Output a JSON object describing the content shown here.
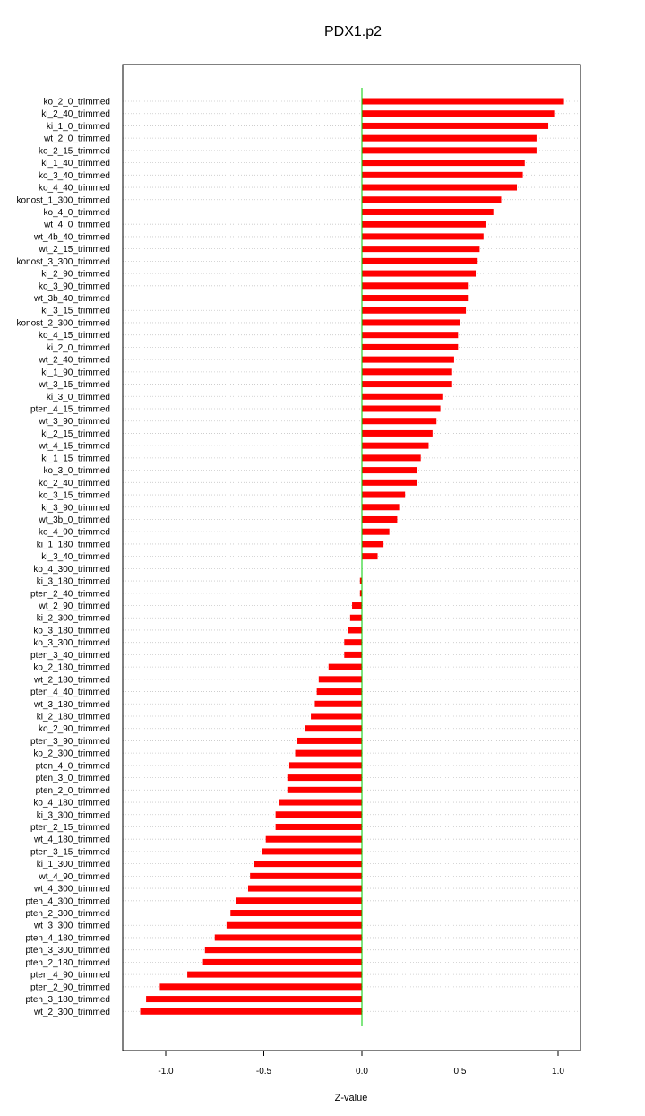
{
  "chart_data": {
    "type": "bar",
    "orientation": "horizontal",
    "title": "PDX1.p2",
    "xlabel": "Z-value",
    "ylabel": "",
    "xlim": [
      -1.18,
      1.1
    ],
    "xticks": [
      -1.0,
      -0.5,
      0.0,
      0.5,
      1.0
    ],
    "xtick_labels": [
      "-1.0",
      "-0.5",
      "0.0",
      "0.5",
      "1.0"
    ],
    "grid": "horizontal dotted",
    "bar_color": "#ff0000",
    "zero_line_color": "#00cc00",
    "categories": [
      "ko_2_0_trimmed",
      "ki_2_40_trimmed",
      "ki_1_0_trimmed",
      "wt_2_0_trimmed",
      "ko_2_15_trimmed",
      "ki_1_40_trimmed",
      "ko_3_40_trimmed",
      "ko_4_40_trimmed",
      "konost_1_300_trimmed",
      "ko_4_0_trimmed",
      "wt_4_0_trimmed",
      "wt_4b_40_trimmed",
      "wt_2_15_trimmed",
      "konost_3_300_trimmed",
      "ki_2_90_trimmed",
      "ko_3_90_trimmed",
      "wt_3b_40_trimmed",
      "ki_3_15_trimmed",
      "konost_2_300_trimmed",
      "ko_4_15_trimmed",
      "ki_2_0_trimmed",
      "wt_2_40_trimmed",
      "ki_1_90_trimmed",
      "wt_3_15_trimmed",
      "ki_3_0_trimmed",
      "pten_4_15_trimmed",
      "wt_3_90_trimmed",
      "ki_2_15_trimmed",
      "wt_4_15_trimmed",
      "ki_1_15_trimmed",
      "ko_3_0_trimmed",
      "ko_2_40_trimmed",
      "ko_3_15_trimmed",
      "ki_3_90_trimmed",
      "wt_3b_0_trimmed",
      "ko_4_90_trimmed",
      "ki_1_180_trimmed",
      "ki_3_40_trimmed",
      "ko_4_300_trimmed",
      "ki_3_180_trimmed",
      "pten_2_40_trimmed",
      "wt_2_90_trimmed",
      "ki_2_300_trimmed",
      "ko_3_180_trimmed",
      "ko_3_300_trimmed",
      "pten_3_40_trimmed",
      "ko_2_180_trimmed",
      "wt_2_180_trimmed",
      "pten_4_40_trimmed",
      "wt_3_180_trimmed",
      "ki_2_180_trimmed",
      "ko_2_90_trimmed",
      "pten_3_90_trimmed",
      "ko_2_300_trimmed",
      "pten_4_0_trimmed",
      "pten_3_0_trimmed",
      "pten_2_0_trimmed",
      "ko_4_180_trimmed",
      "ki_3_300_trimmed",
      "pten_2_15_trimmed",
      "wt_4_180_trimmed",
      "pten_3_15_trimmed",
      "ki_1_300_trimmed",
      "wt_4_90_trimmed",
      "wt_4_300_trimmed",
      "pten_4_300_trimmed",
      "pten_2_300_trimmed",
      "wt_3_300_trimmed",
      "pten_4_180_trimmed",
      "pten_3_300_trimmed",
      "pten_2_180_trimmed",
      "pten_4_90_trimmed",
      "pten_2_90_trimmed",
      "pten_3_180_trimmed",
      "wt_2_300_trimmed"
    ],
    "values": [
      1.03,
      0.98,
      0.95,
      0.89,
      0.89,
      0.83,
      0.82,
      0.79,
      0.71,
      0.67,
      0.63,
      0.62,
      0.6,
      0.59,
      0.58,
      0.54,
      0.54,
      0.53,
      0.5,
      0.49,
      0.49,
      0.47,
      0.46,
      0.46,
      0.41,
      0.4,
      0.38,
      0.36,
      0.34,
      0.3,
      0.28,
      0.28,
      0.22,
      0.19,
      0.18,
      0.14,
      0.11,
      0.08,
      0.0,
      -0.01,
      -0.01,
      -0.05,
      -0.06,
      -0.07,
      -0.09,
      -0.09,
      -0.17,
      -0.22,
      -0.23,
      -0.24,
      -0.26,
      -0.29,
      -0.33,
      -0.34,
      -0.37,
      -0.38,
      -0.38,
      -0.42,
      -0.44,
      -0.44,
      -0.49,
      -0.51,
      -0.55,
      -0.57,
      -0.58,
      -0.64,
      -0.67,
      -0.69,
      -0.75,
      -0.8,
      -0.81,
      -0.89,
      -1.03,
      -1.1,
      -1.13
    ]
  }
}
